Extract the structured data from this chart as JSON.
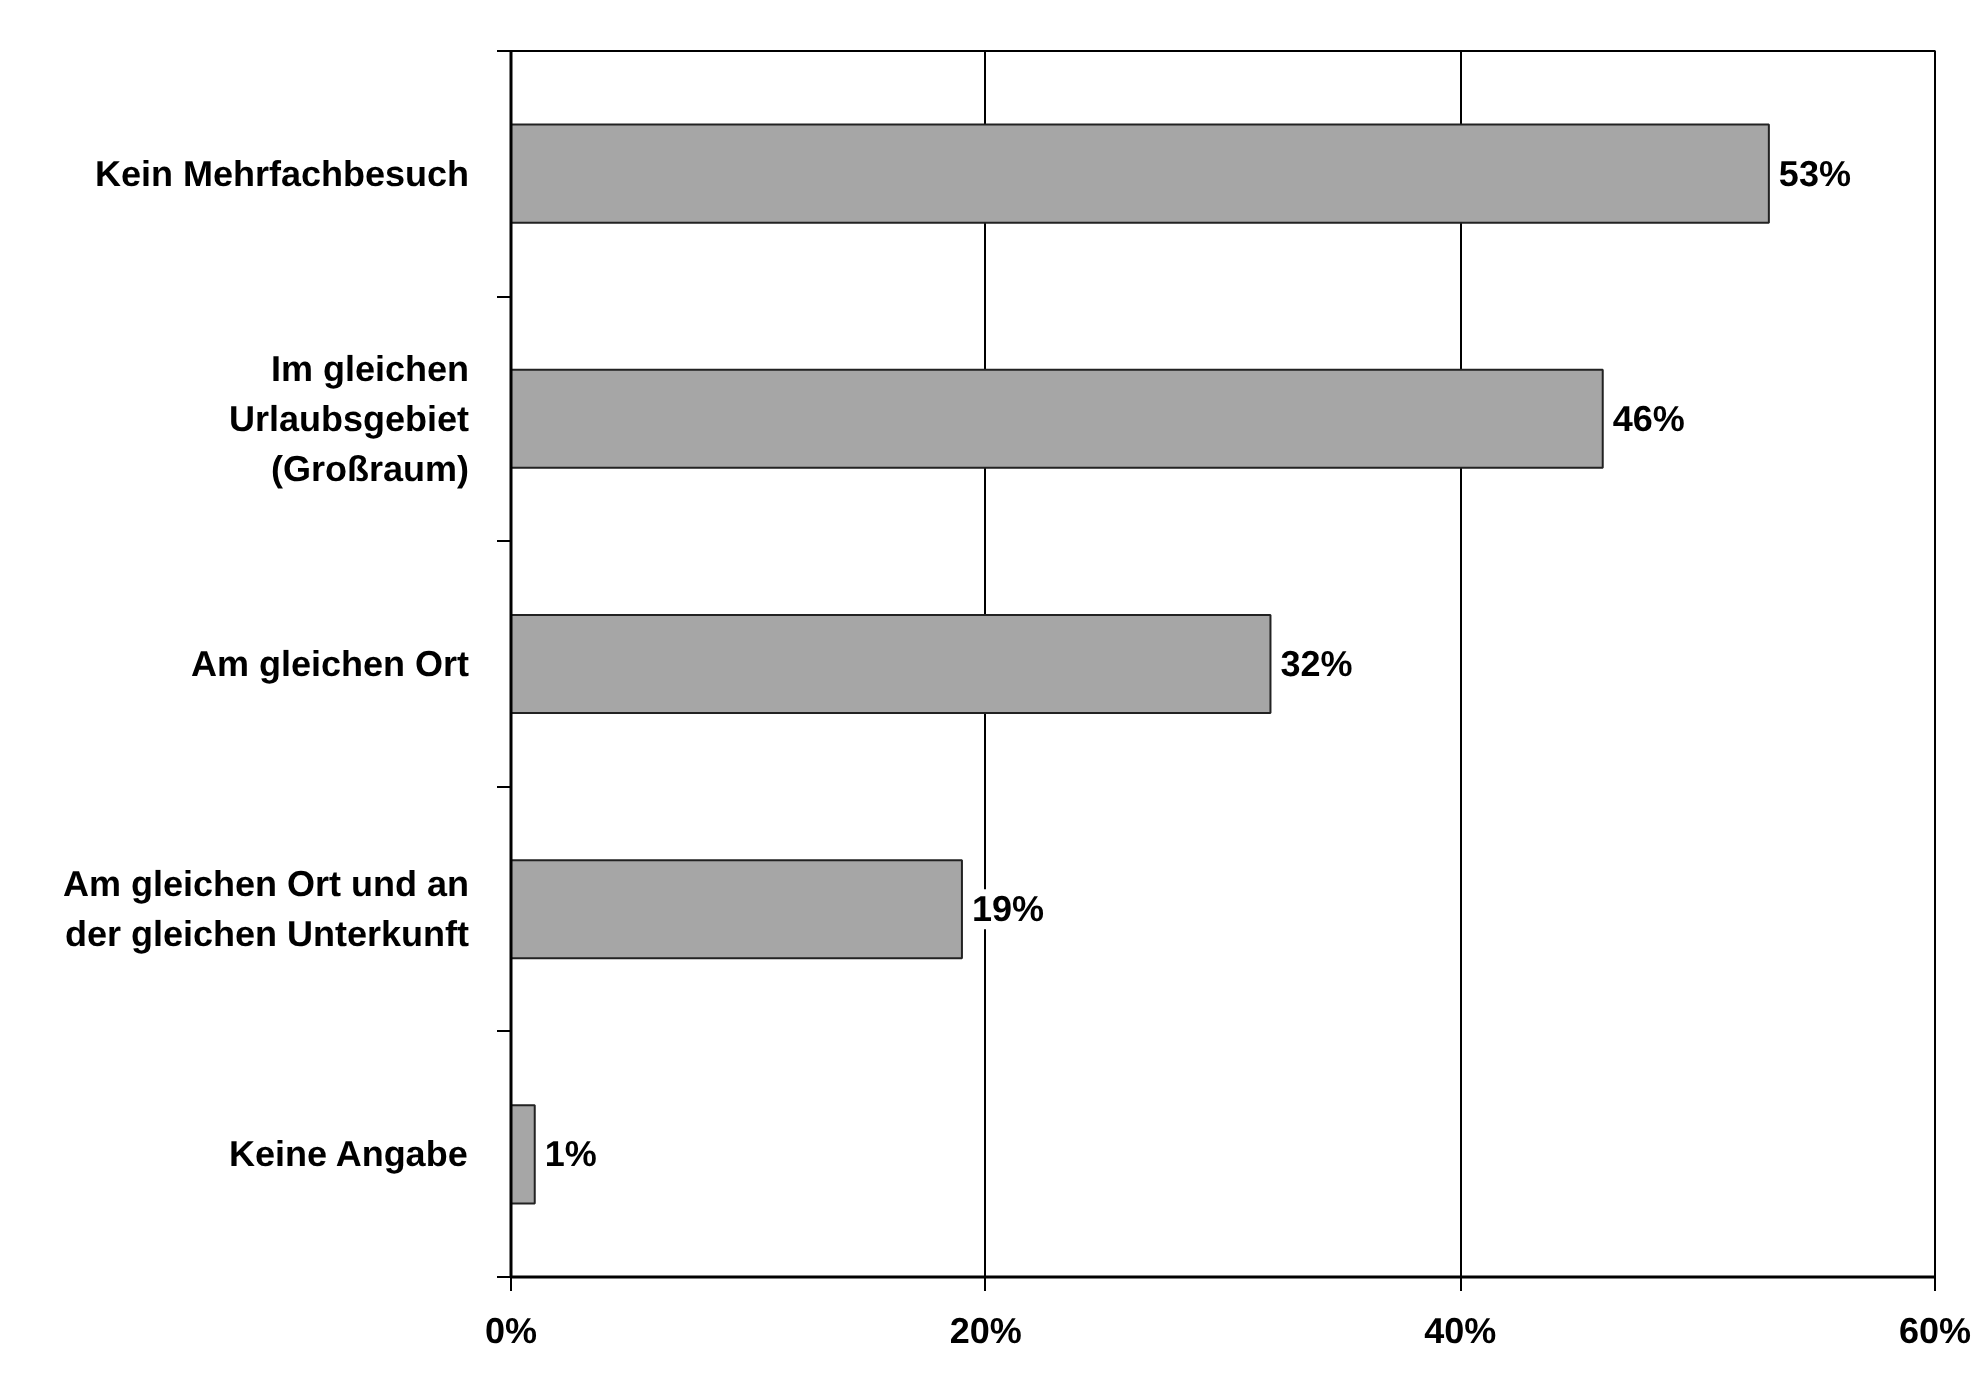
{
  "chart_data": {
    "type": "bar",
    "orientation": "horizontal",
    "categories": [
      "Kein Mehrfachbesuch",
      "Im gleichen Urlaubsgebiet (Großraum)",
      "Am gleichen Ort",
      "Am gleichen Ort und an der gleichen Unterkunft",
      "Keine Angabe"
    ],
    "values": [
      53,
      46,
      32,
      19,
      1
    ],
    "color": "#a6a6a6",
    "value_labels": [
      "53%",
      "46%",
      "32%",
      "19%",
      "1%"
    ],
    "xlim": [
      0,
      60
    ],
    "xticks": [
      {
        "value": 0,
        "label": "0%"
      },
      {
        "value": 20,
        "label": "20%"
      },
      {
        "value": 40,
        "label": "40%"
      },
      {
        "value": 60,
        "label": "60%"
      }
    ],
    "grid": "x"
  }
}
